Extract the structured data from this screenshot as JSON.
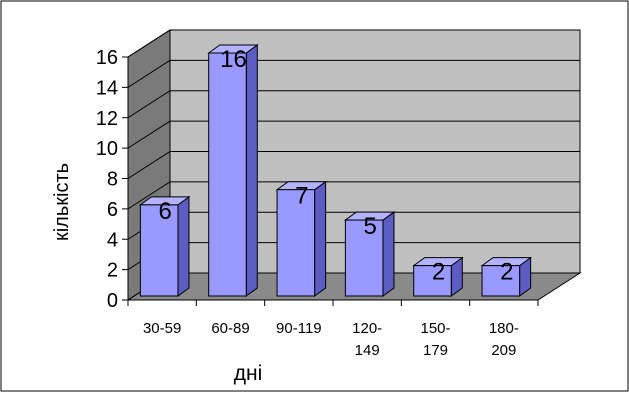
{
  "chart_data": {
    "type": "bar",
    "categories": [
      "30-59",
      "60-89",
      "90-119",
      "120-149",
      "150-179",
      "180-209"
    ],
    "category_labels": [
      [
        "30-59"
      ],
      [
        "60-89"
      ],
      [
        "90-119"
      ],
      [
        "120-",
        "149"
      ],
      [
        "150-",
        "179"
      ],
      [
        "180-",
        "209"
      ]
    ],
    "values": [
      6,
      16,
      7,
      5,
      2,
      2
    ],
    "data_labels": [
      "6",
      "16",
      "7",
      "5",
      "2",
      "2"
    ],
    "title": "",
    "xlabel": "дні",
    "ylabel": "кількість",
    "ylim": [
      0,
      16
    ],
    "yticks": [
      0,
      2,
      4,
      6,
      8,
      10,
      12,
      14,
      16
    ],
    "ytick_labels": [
      "0",
      "2",
      "4",
      "6",
      "8",
      "10",
      "12",
      "14",
      "16"
    ],
    "grid": true,
    "legend": false,
    "style": "3d-column",
    "colors": {
      "bar_front": "#9999ff",
      "bar_side": "#5c5cc2",
      "bar_top": "#b3b3ff",
      "back_wall": "#c0c0c0",
      "side_wall": "#7a7a7a",
      "floor": "#8a8a8a",
      "gridline": "#000000"
    }
  }
}
